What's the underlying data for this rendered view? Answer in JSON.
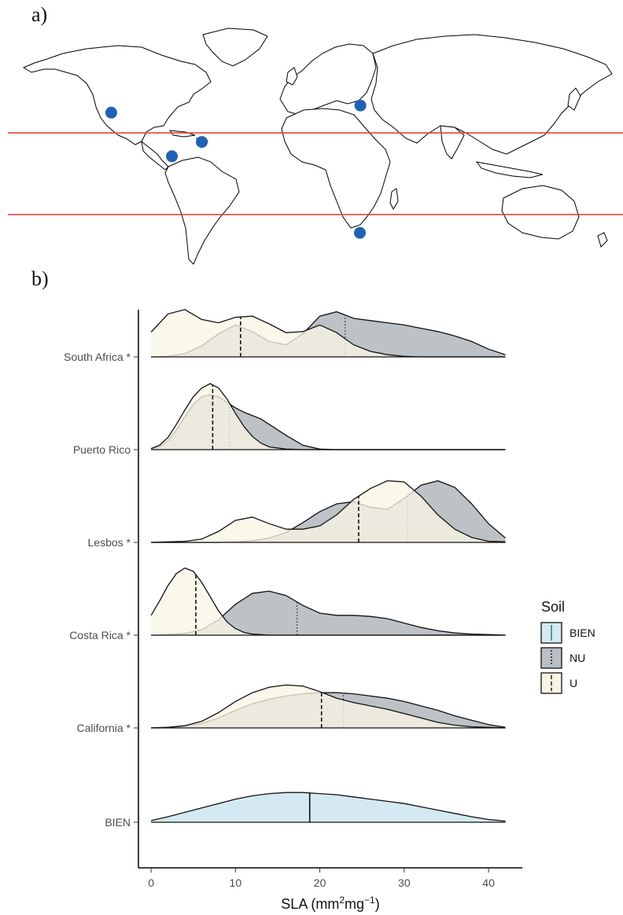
{
  "panels": {
    "a_label": "a)",
    "b_label": "b)"
  },
  "map": {
    "tropic_line_color": "#e0453a",
    "point_color": "#1f62b4",
    "sites": [
      {
        "name": "California",
        "lon": -119.5,
        "lat": 35.0
      },
      {
        "name": "Puerto Rico",
        "lon": -66.5,
        "lat": 18.2
      },
      {
        "name": "Costa Rica",
        "lon": -84.0,
        "lat": 10.0
      },
      {
        "name": "Lesbos",
        "lon": 26.3,
        "lat": 39.1
      },
      {
        "name": "South Africa",
        "lon": 26.0,
        "lat": -33.9
      }
    ],
    "tropics_lat": [
      23.4,
      -23.4
    ]
  },
  "chart_data": {
    "type": "area",
    "subtype": "ridgeline density",
    "xlabel": "SLA (mm²mg⁻¹)",
    "xlabel_parts": {
      "base": "SLA (mm",
      "sup1": "2",
      "mid": "mg",
      "sup2": "−1",
      "end": ")"
    },
    "xlim": [
      -1.5,
      44
    ],
    "x_ticks": [
      0,
      10,
      20,
      30,
      40
    ],
    "legend": {
      "title": "Soil",
      "position": "right",
      "entries": [
        {
          "label": "BIEN",
          "fill": "#d4e9f1",
          "line": "solid"
        },
        {
          "label": "NU",
          "fill": "#b9bfc4",
          "line": "dotted"
        },
        {
          "label": "U",
          "fill": "#f7f4e3",
          "line": "dashed"
        }
      ]
    },
    "colors": {
      "BIEN": "#d4e9f1",
      "NU": "#a7adb3",
      "U": "#f8f5e6"
    },
    "rows": [
      {
        "label": "South Africa *",
        "series": [
          {
            "name": "U",
            "x": [
              0,
              2,
              4,
              6,
              8,
              10,
              12,
              14,
              16,
              18,
              20,
              22,
              24,
              26,
              28,
              30,
              32,
              34,
              36,
              38,
              40,
              42
            ],
            "y": [
              0.45,
              0.78,
              0.86,
              0.68,
              0.62,
              0.72,
              0.74,
              0.6,
              0.44,
              0.46,
              0.58,
              0.44,
              0.22,
              0.1,
              0.04,
              0.01,
              0,
              0,
              0,
              0,
              0,
              0
            ],
            "median": 10.6
          },
          {
            "name": "NU",
            "x": [
              0,
              2,
              4,
              6,
              8,
              10,
              12,
              14,
              16,
              18,
              20,
              22,
              24,
              26,
              28,
              30,
              32,
              34,
              36,
              38,
              40,
              42
            ],
            "y": [
              0,
              0.01,
              0.06,
              0.2,
              0.42,
              0.58,
              0.46,
              0.28,
              0.22,
              0.42,
              0.74,
              0.82,
              0.7,
              0.66,
              0.62,
              0.58,
              0.52,
              0.46,
              0.38,
              0.28,
              0.14,
              0.04
            ],
            "median": 23.0
          }
        ]
      },
      {
        "label": "Puerto Rico",
        "series": [
          {
            "name": "U",
            "x": [
              0,
              1,
              2,
              3,
              4,
              5,
              6,
              7,
              8,
              9,
              10,
              11,
              12,
              13,
              14,
              16,
              18,
              20,
              24,
              28,
              34,
              42
            ],
            "y": [
              0.02,
              0.08,
              0.22,
              0.46,
              0.72,
              0.96,
              1.12,
              1.2,
              1.12,
              0.92,
              0.66,
              0.42,
              0.24,
              0.12,
              0.05,
              0.01,
              0,
              0,
              0,
              0,
              0,
              0
            ],
            "median": 7.3
          },
          {
            "name": "NU",
            "x": [
              0,
              1,
              2,
              3,
              4,
              5,
              6,
              7,
              8,
              9,
              10,
              11,
              12,
              13,
              14,
              16,
              18,
              20,
              22,
              28,
              34,
              42
            ],
            "y": [
              0.01,
              0.05,
              0.16,
              0.36,
              0.6,
              0.82,
              0.96,
              1.0,
              0.96,
              0.86,
              0.76,
              0.68,
              0.62,
              0.56,
              0.46,
              0.26,
              0.08,
              0.01,
              0,
              0,
              0,
              0
            ],
            "median": 9.3
          }
        ]
      },
      {
        "label": "Lesbos *",
        "series": [
          {
            "name": "U",
            "x": [
              0,
              2,
              4,
              6,
              8,
              10,
              12,
              14,
              16,
              18,
              20,
              22,
              24,
              26,
              28,
              30,
              32,
              34,
              36,
              38,
              40,
              42
            ],
            "y": [
              0,
              0.01,
              0.02,
              0.06,
              0.2,
              0.4,
              0.46,
              0.34,
              0.24,
              0.24,
              0.3,
              0.5,
              0.78,
              0.98,
              1.12,
              1.1,
              0.84,
              0.5,
              0.24,
              0.09,
              0.02,
              0.01
            ],
            "median": 24.6
          },
          {
            "name": "NU",
            "x": [
              0,
              2,
              4,
              6,
              8,
              10,
              12,
              14,
              16,
              18,
              20,
              22,
              24,
              26,
              28,
              30,
              32,
              34,
              36,
              38,
              40,
              42
            ],
            "y": [
              0,
              0,
              0,
              0,
              0,
              0.01,
              0.03,
              0.08,
              0.18,
              0.36,
              0.56,
              0.7,
              0.74,
              0.64,
              0.6,
              0.8,
              1.04,
              1.12,
              1.0,
              0.7,
              0.34,
              0.08
            ],
            "median": 30.4
          }
        ]
      },
      {
        "label": "Costa Rica *",
        "series": [
          {
            "name": "U",
            "x": [
              0,
              1,
              2,
              3,
              4,
              5,
              6,
              7,
              8,
              9,
              10,
              11,
              12,
              14,
              16,
              18,
              20,
              24,
              28,
              34,
              42
            ],
            "y": [
              0.36,
              0.62,
              0.9,
              1.12,
              1.22,
              1.16,
              0.96,
              0.7,
              0.44,
              0.24,
              0.12,
              0.05,
              0.02,
              0,
              0,
              0,
              0,
              0,
              0,
              0,
              0
            ],
            "median": 5.3
          },
          {
            "name": "NU",
            "x": [
              0,
              2,
              4,
              6,
              8,
              10,
              12,
              14,
              16,
              18,
              20,
              22,
              24,
              26,
              28,
              30,
              32,
              34,
              36,
              38,
              40,
              42
            ],
            "y": [
              0,
              0.01,
              0.03,
              0.1,
              0.28,
              0.56,
              0.76,
              0.8,
              0.72,
              0.54,
              0.4,
              0.36,
              0.36,
              0.34,
              0.3,
              0.22,
              0.14,
              0.08,
              0.04,
              0.02,
              0.01,
              0
            ],
            "median": 17.3
          }
        ]
      },
      {
        "label": "California *",
        "series": [
          {
            "name": "U",
            "x": [
              0,
              2,
              4,
              6,
              8,
              10,
              12,
              14,
              16,
              18,
              20,
              22,
              24,
              26,
              28,
              30,
              32,
              34,
              36,
              38,
              40,
              42
            ],
            "y": [
              0,
              0.01,
              0.04,
              0.12,
              0.28,
              0.48,
              0.64,
              0.74,
              0.78,
              0.76,
              0.66,
              0.54,
              0.46,
              0.4,
              0.34,
              0.26,
              0.18,
              0.1,
              0.05,
              0.02,
              0.01,
              0
            ],
            "median": 20.2
          },
          {
            "name": "NU",
            "x": [
              0,
              2,
              4,
              6,
              8,
              10,
              12,
              14,
              16,
              18,
              20,
              22,
              24,
              26,
              28,
              30,
              32,
              34,
              36,
              38,
              40,
              42
            ],
            "y": [
              0,
              0.01,
              0.03,
              0.08,
              0.18,
              0.32,
              0.44,
              0.52,
              0.58,
              0.62,
              0.64,
              0.64,
              0.62,
              0.58,
              0.54,
              0.48,
              0.4,
              0.32,
              0.22,
              0.14,
              0.06,
              0.01
            ],
            "median": 22.8
          }
        ]
      },
      {
        "label": "BIEN",
        "series": [
          {
            "name": "BIEN",
            "x": [
              0,
              2,
              4,
              6,
              8,
              10,
              12,
              14,
              16,
              18,
              20,
              22,
              24,
              26,
              28,
              30,
              32,
              34,
              36,
              38,
              40,
              42
            ],
            "y": [
              0.03,
              0.1,
              0.18,
              0.26,
              0.34,
              0.42,
              0.48,
              0.52,
              0.54,
              0.54,
              0.52,
              0.5,
              0.46,
              0.42,
              0.38,
              0.34,
              0.28,
              0.22,
              0.16,
              0.1,
              0.05,
              0.02
            ],
            "median": 18.8
          }
        ]
      }
    ]
  }
}
